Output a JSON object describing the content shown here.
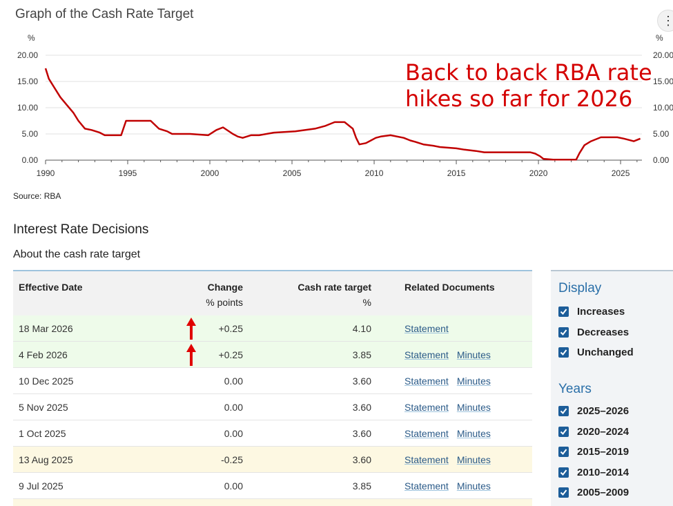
{
  "chart_data": {
    "type": "line",
    "title": "Graph of the Cash Rate Target",
    "ylabel": "%",
    "ylim": [
      0,
      20
    ],
    "xlim": [
      1990,
      2026.3
    ],
    "y_ticks": [
      "20.00",
      "15.00",
      "10.00",
      "5.00",
      "0.00"
    ],
    "x_ticks": [
      "1990",
      "1995",
      "2000",
      "2005",
      "2010",
      "2015",
      "2020",
      "2025"
    ],
    "grid": true,
    "series": [
      {
        "color": "#c00000",
        "x": [
          1990.0,
          1990.2,
          1990.5,
          1990.9,
          1991.3,
          1991.7,
          1992.0,
          1992.4,
          1992.8,
          1993.3,
          1993.6,
          1994.6,
          1994.9,
          1996.4,
          1996.9,
          1997.4,
          1997.7,
          1998.8,
          1999.9,
          2000.4,
          2000.8,
          2001.4,
          2001.7,
          2002.0,
          2002.5,
          2003.0,
          2003.9,
          2005.2,
          2006.4,
          2007.0,
          2007.6,
          2008.2,
          2008.7,
          2008.9,
          2009.1,
          2009.5,
          2009.8,
          2010.1,
          2010.4,
          2011.0,
          2011.8,
          2012.2,
          2012.5,
          2013.0,
          2013.6,
          2014.0,
          2015.0,
          2015.5,
          2016.2,
          2016.7,
          2019.5,
          2019.8,
          2020.1,
          2020.3,
          2020.9,
          2022.3,
          2022.5,
          2022.8,
          2023.2,
          2023.8,
          2024.8,
          2025.2,
          2025.5,
          2025.8,
          2026.0,
          2026.2
        ],
        "y": [
          17.5,
          15.5,
          14.0,
          12.0,
          10.5,
          9.0,
          7.5,
          6.0,
          5.75,
          5.25,
          4.75,
          4.75,
          7.5,
          7.5,
          6.0,
          5.5,
          5.0,
          5.0,
          4.75,
          5.75,
          6.25,
          5.0,
          4.5,
          4.25,
          4.75,
          4.75,
          5.25,
          5.5,
          6.0,
          6.5,
          7.25,
          7.25,
          6.0,
          4.25,
          3.0,
          3.25,
          3.75,
          4.25,
          4.5,
          4.75,
          4.25,
          3.75,
          3.5,
          3.0,
          2.75,
          2.5,
          2.25,
          2.0,
          1.75,
          1.5,
          1.5,
          1.25,
          0.75,
          0.25,
          0.1,
          0.1,
          1.35,
          2.85,
          3.6,
          4.35,
          4.35,
          4.1,
          3.85,
          3.6,
          3.85,
          4.1
        ]
      }
    ],
    "annotation": "Back to back RBA rate hikes so far for 2026"
  },
  "source": "Source: RBA",
  "menu_icon": "kebab-menu-icon",
  "section_title": "Interest Rate Decisions",
  "about_link": "About the cash rate target",
  "table": {
    "headers": {
      "date": "Effective Date",
      "change": "Change",
      "change_sub": "% points",
      "target": "Cash rate target",
      "target_sub": "%",
      "docs": "Related Documents"
    },
    "rows": [
      {
        "date": "18 Mar 2026",
        "change": "+0.25",
        "target": "4.10",
        "docs": [
          "Statement"
        ],
        "type": "increase",
        "arrow": true
      },
      {
        "date": "4 Feb 2026",
        "change": "+0.25",
        "target": "3.85",
        "docs": [
          "Statement",
          "Minutes"
        ],
        "type": "increase",
        "arrow": true
      },
      {
        "date": "10 Dec 2025",
        "change": "0.00",
        "target": "3.60",
        "docs": [
          "Statement",
          "Minutes"
        ],
        "type": "unchanged",
        "arrow": false
      },
      {
        "date": "5 Nov 2025",
        "change": "0.00",
        "target": "3.60",
        "docs": [
          "Statement",
          "Minutes"
        ],
        "type": "unchanged",
        "arrow": false
      },
      {
        "date": "1 Oct 2025",
        "change": "0.00",
        "target": "3.60",
        "docs": [
          "Statement",
          "Minutes"
        ],
        "type": "unchanged",
        "arrow": false
      },
      {
        "date": "13 Aug 2025",
        "change": "-0.25",
        "target": "3.60",
        "docs": [
          "Statement",
          "Minutes"
        ],
        "type": "decrease",
        "arrow": false
      },
      {
        "date": "9 Jul 2025",
        "change": "0.00",
        "target": "3.85",
        "docs": [
          "Statement",
          "Minutes"
        ],
        "type": "unchanged",
        "arrow": false
      }
    ]
  },
  "filters": {
    "display_heading": "Display",
    "display_items": [
      "Increases",
      "Decreases",
      "Unchanged"
    ],
    "years_heading": "Years",
    "year_items": [
      "2025–2026",
      "2020–2024",
      "2015–2019",
      "2010–2014",
      "2005–2009"
    ]
  }
}
